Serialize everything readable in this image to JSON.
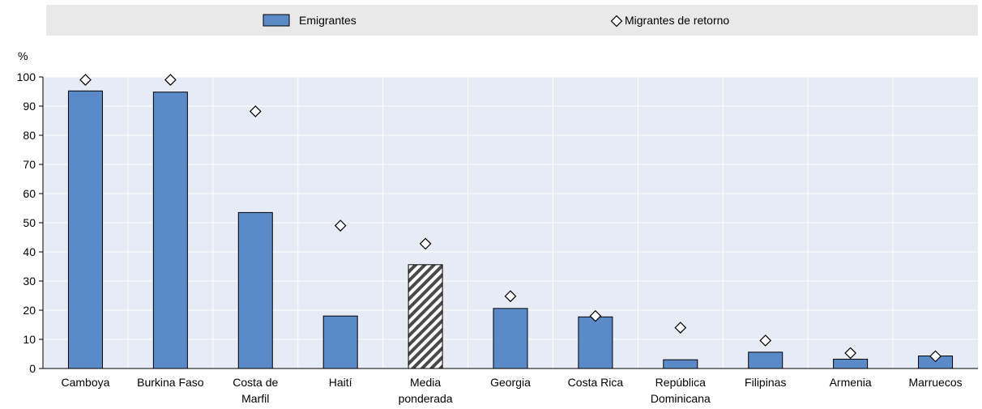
{
  "legend": {
    "emigrants_label": "Emigrantes",
    "returnees_label": "Migrantes de retorno"
  },
  "colors": {
    "bar": "#5b8ac8",
    "highlight_bar": "hatched-gray",
    "plot_background": "#e6ebf5",
    "legend_background": "#e9e9e9"
  },
  "chart_data": {
    "type": "bar",
    "title": "",
    "xlabel": "",
    "ylabel": "%",
    "ylim": [
      0,
      100
    ],
    "yticks": [
      0,
      10,
      20,
      30,
      40,
      50,
      60,
      70,
      80,
      90,
      100
    ],
    "grid": true,
    "legend_position": "top",
    "categories": [
      [
        "Camboya"
      ],
      [
        "Burkina Faso"
      ],
      [
        "Costa de",
        "Marfil"
      ],
      [
        "Haití"
      ],
      [
        "Media",
        "ponderada"
      ],
      [
        "Georgia"
      ],
      [
        "Costa Rica"
      ],
      [
        "República",
        "Dominicana"
      ],
      [
        "Filipinas"
      ],
      [
        "Armenia"
      ],
      [
        "Marruecos"
      ]
    ],
    "highlight_index": 4,
    "series": [
      {
        "name": "Emigrantes",
        "type": "bar",
        "values": [
          95.2,
          94.8,
          53.5,
          18.0,
          35.6,
          20.6,
          17.7,
          3.0,
          5.6,
          3.2,
          4.3
        ]
      },
      {
        "name": "Migrantes de retorno",
        "type": "marker",
        "values": [
          99.0,
          99.0,
          88.2,
          49.0,
          42.8,
          24.8,
          18.0,
          14.0,
          9.6,
          5.3,
          4.2
        ]
      }
    ]
  }
}
